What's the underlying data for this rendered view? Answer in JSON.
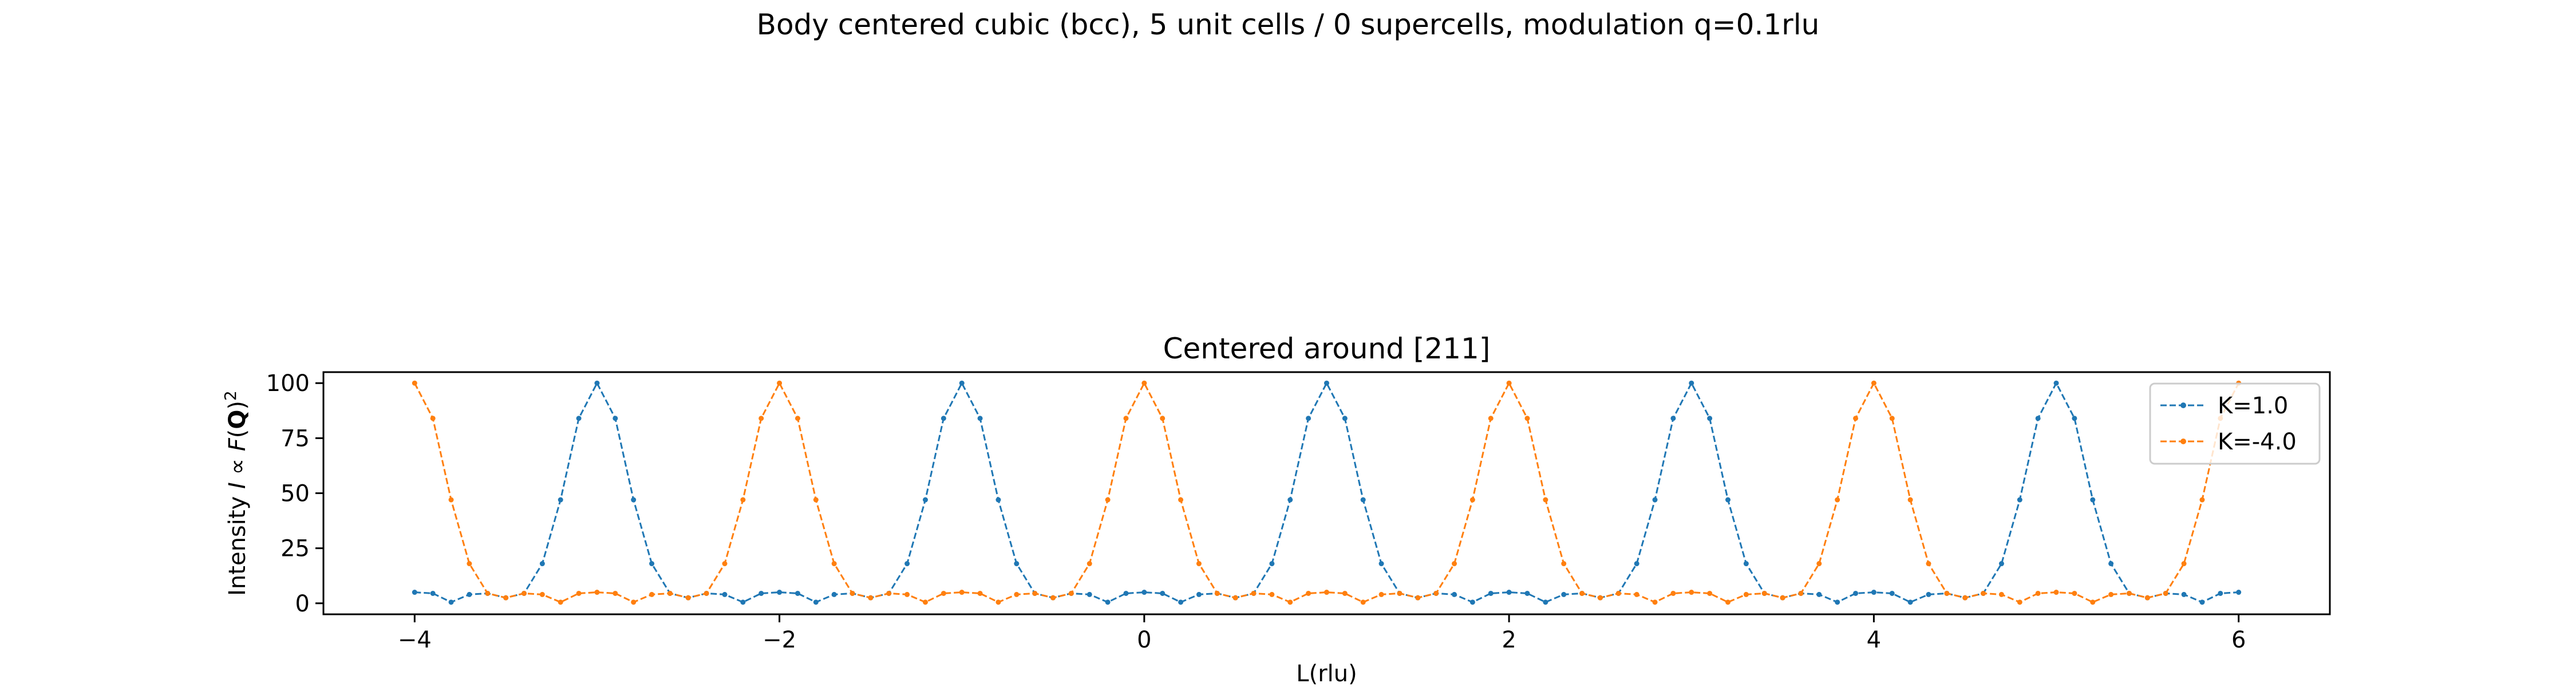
{
  "figure": {
    "suptitle": "Body centered cubic (bcc), 5 unit cells / 0 supercells, modulation q=0.1rlu"
  },
  "chart_data": {
    "type": "line",
    "title": "Centered around [211]",
    "xlabel": "L(rlu)",
    "ylabel": "Intensity I ∝ F(Q)²",
    "ylabel_parts": {
      "prefix": "Intensity ",
      "I": "I",
      "prop": " ∝ ",
      "F": "F",
      "lp": "(",
      "Q": "Q",
      "rp": ")",
      "sup": "2"
    },
    "xlim": [
      -4.5,
      6.5
    ],
    "ylim": [
      -5,
      105
    ],
    "xticks": [
      -4,
      -2,
      0,
      2,
      4,
      6
    ],
    "xtick_labels": [
      "−4",
      "−2",
      "0",
      "2",
      "4",
      "6"
    ],
    "yticks": [
      0,
      25,
      50,
      75,
      100
    ],
    "ytick_labels": [
      "0",
      "25",
      "50",
      "75",
      "100"
    ],
    "grid": false,
    "legend_position": "upper right",
    "x_range": {
      "start": -4.0,
      "end": 6.0,
      "step": 0.1
    },
    "series": [
      {
        "name": "K=1.0",
        "color": "#1f77b4",
        "peaks_at": "odd L"
      },
      {
        "name": "K=-4.0",
        "color": "#ff7f0e",
        "peaks_at": "even L"
      }
    ],
    "profile_by_offset": [
      100,
      84,
      47,
      18,
      4.5,
      2.5,
      4.5,
      4,
      0.5,
      4.5,
      5
    ]
  }
}
